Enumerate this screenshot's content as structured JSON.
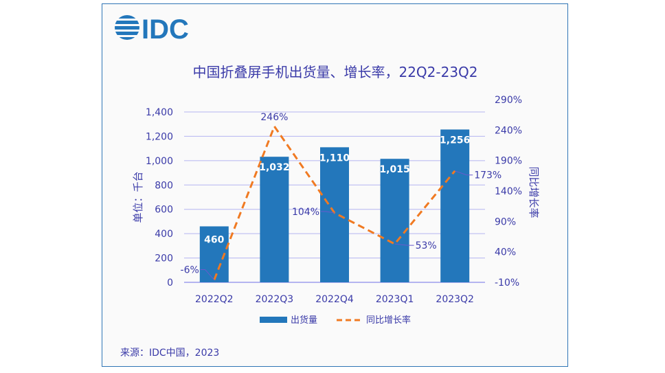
{
  "logo_text": "IDC",
  "chart_data": {
    "type": "bar+line",
    "title": "中国折叠屏手机出货量、增长率，22Q2-23Q2",
    "categories": [
      "2022Q2",
      "2022Q3",
      "2022Q4",
      "2023Q1",
      "2023Q2"
    ],
    "series": [
      {
        "name": "出货量",
        "type": "bar",
        "axis": "left",
        "values": [
          460,
          1032,
          1110,
          1015,
          1256
        ],
        "labels": [
          "460",
          "1,032",
          "1,110",
          "1,015",
          "1,256"
        ],
        "color": "#2377bb"
      },
      {
        "name": "同比增长率",
        "type": "line",
        "style": "dashed",
        "axis": "right",
        "values": [
          -6,
          246,
          104,
          53,
          173
        ],
        "labels": [
          "-6%",
          "246%",
          "104%",
          "53%",
          "173%"
        ],
        "color": "#f07a22"
      }
    ],
    "ylabel": "单位：千台",
    "y2label": "同比增长率",
    "ylim": [
      0,
      1400
    ],
    "yticks": [
      "0",
      "200",
      "400",
      "600",
      "800",
      "1,000",
      "1,200",
      "1,400"
    ],
    "y2lim": [
      -10,
      290
    ],
    "y2ticks": [
      "-10%",
      "40%",
      "90%",
      "140%",
      "190%",
      "240%",
      "290%"
    ],
    "grid": true,
    "legend": "bottom"
  },
  "source": "来源：IDC中国，2023"
}
